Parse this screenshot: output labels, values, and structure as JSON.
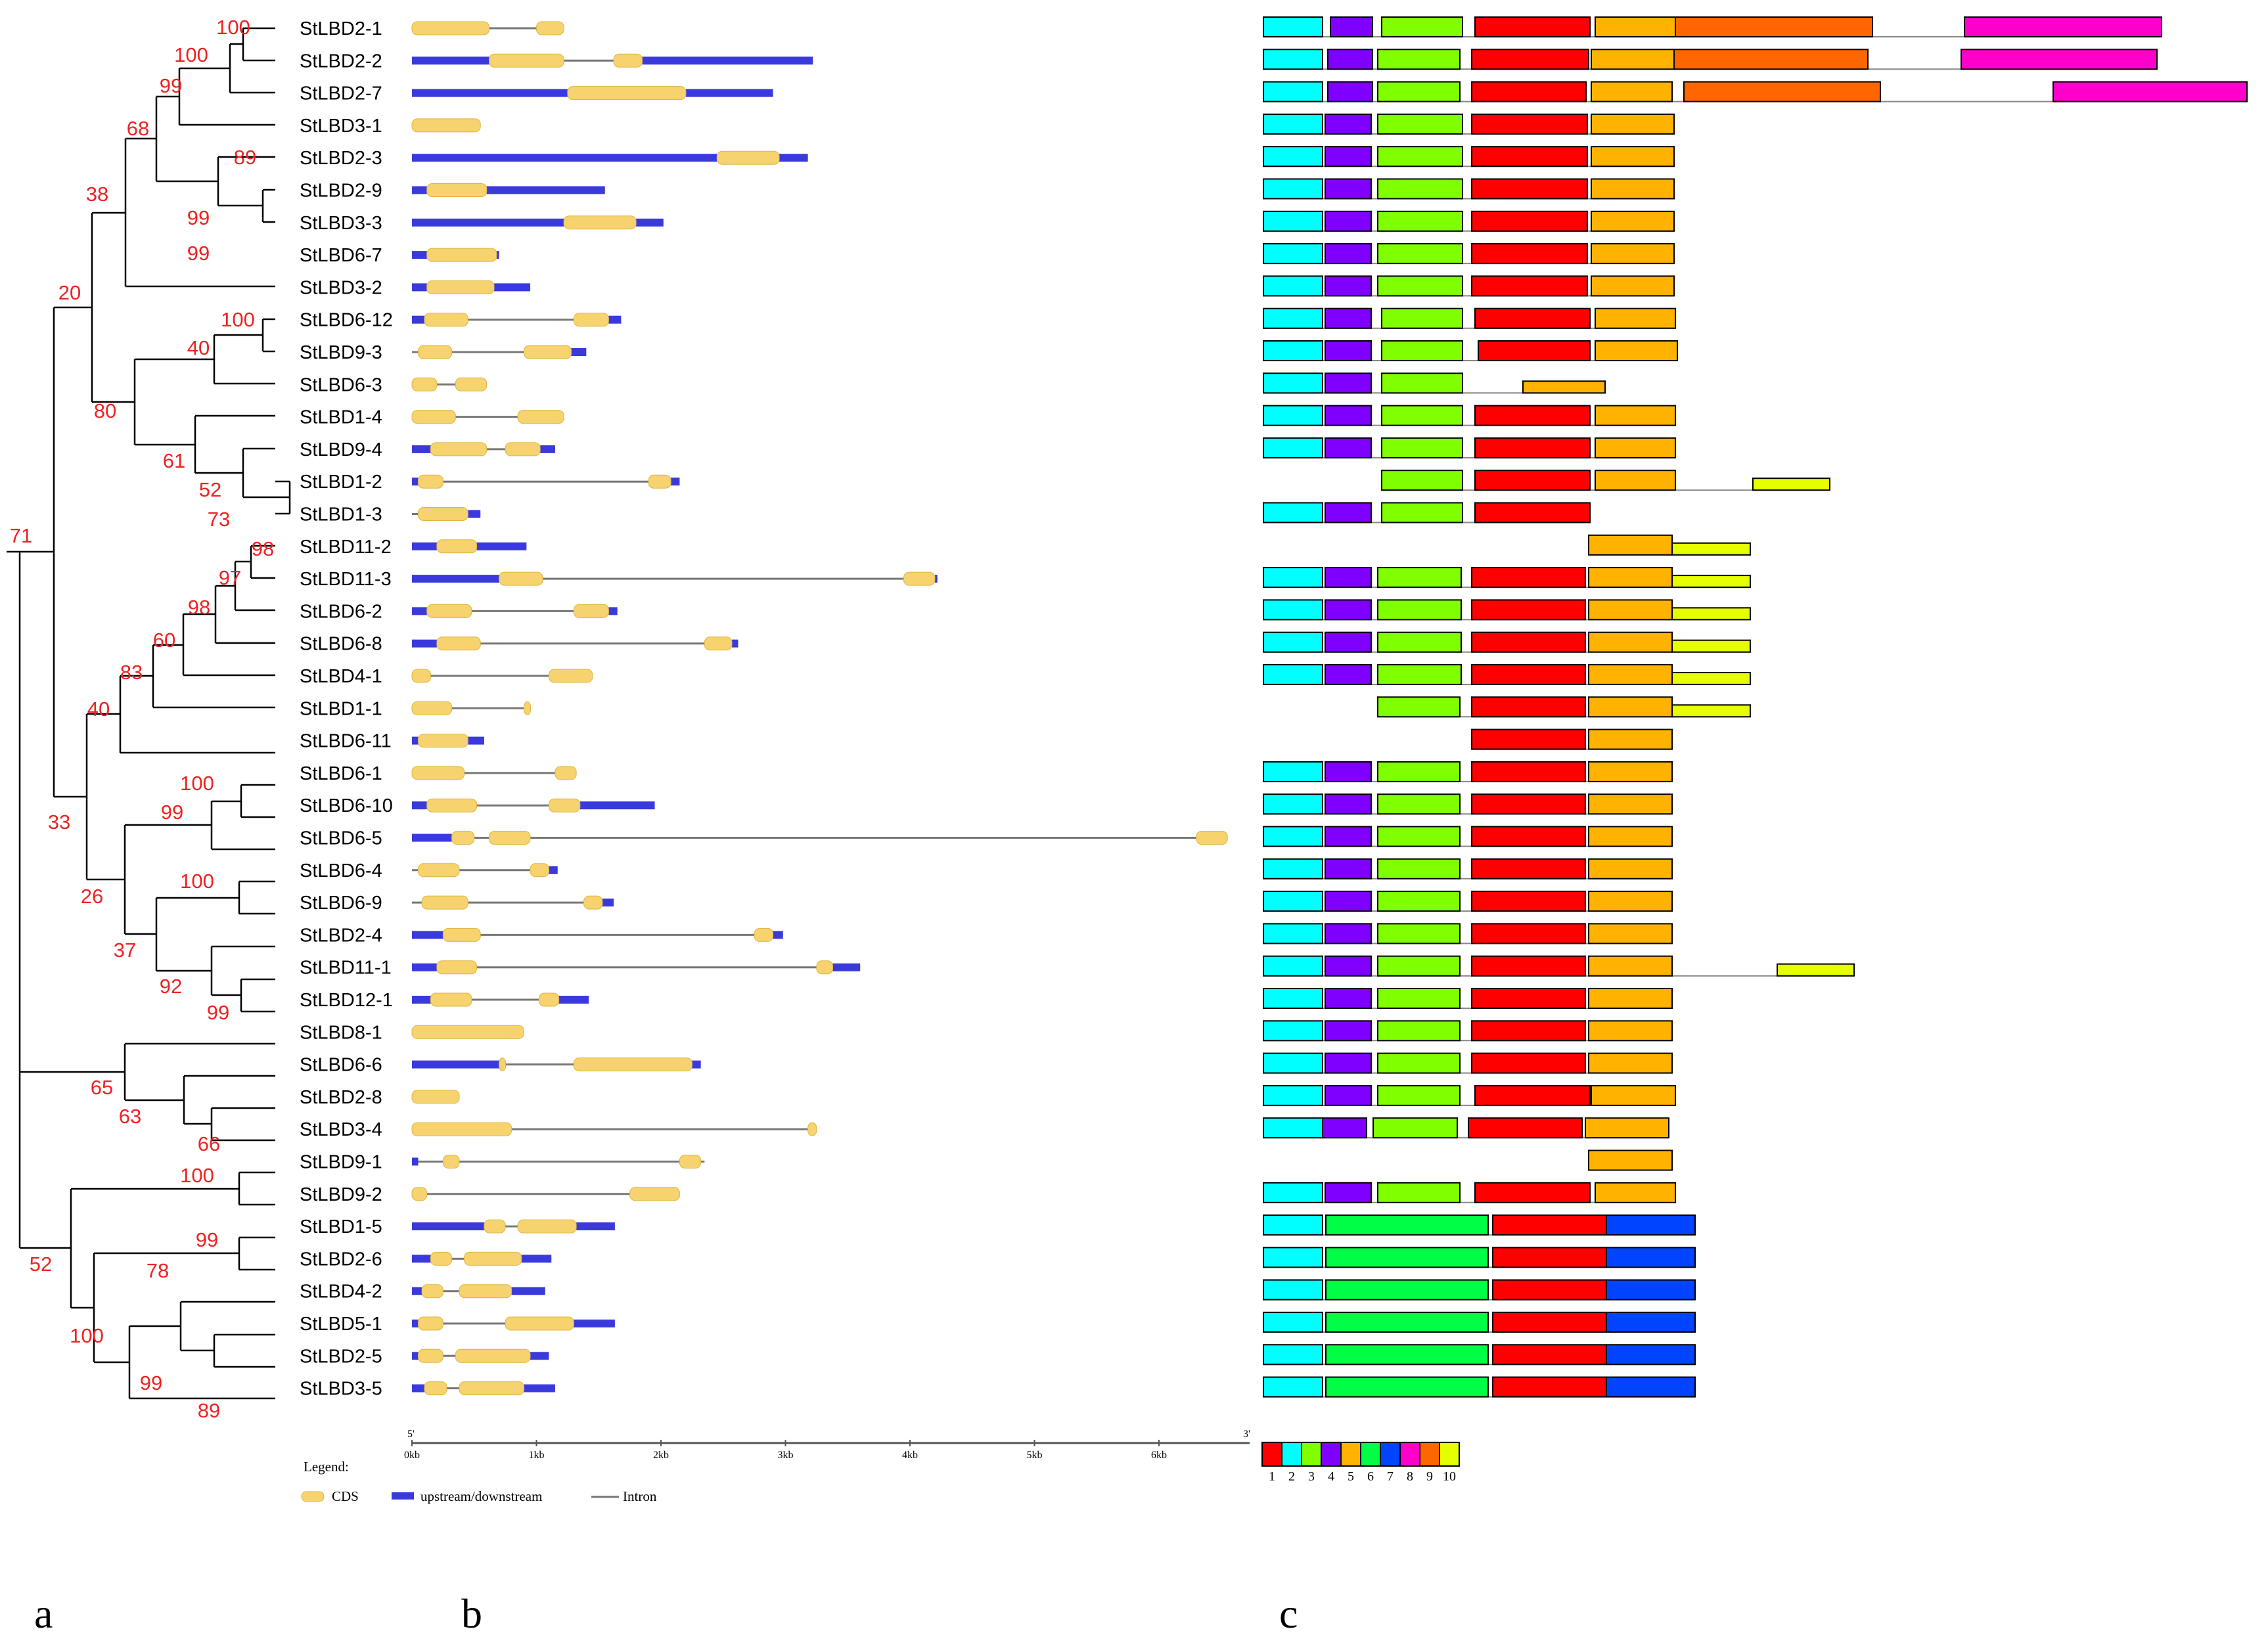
{
  "genes": [
    "StLBD2-1",
    "StLBD2-2",
    "StLBD2-7",
    "StLBD3-1",
    "StLBD2-3",
    "StLBD2-9",
    "StLBD3-3",
    "StLBD6-7",
    "StLBD3-2",
    "StLBD6-12",
    "StLBD9-3",
    "StLBD6-3",
    "StLBD1-4",
    "StLBD9-4",
    "StLBD1-2",
    "StLBD1-3",
    "StLBD11-2",
    "StLBD11-3",
    "StLBD6-2",
    "StLBD6-8",
    "StLBD4-1",
    "StLBD1-1",
    "StLBD6-11",
    "StLBD6-1",
    "StLBD6-10",
    "StLBD6-5",
    "StLBD6-4",
    "StLBD6-9",
    "StLBD2-4",
    "StLBD11-1",
    "StLBD12-1",
    "StLBD8-1",
    "StLBD6-6",
    "StLBD2-8",
    "StLBD3-4",
    "StLBD9-1",
    "StLBD9-2",
    "StLBD1-5",
    "StLBD2-6",
    "StLBD4-2",
    "StLBD5-1",
    "StLBD2-5",
    "StLBD3-5"
  ],
  "bootstrap": [
    "100",
    "100",
    "99",
    "68",
    "89",
    "99",
    "99",
    "38",
    "20",
    "100",
    "40",
    "80",
    "61",
    "52",
    "73",
    "71",
    "98",
    "97",
    "98",
    "60",
    "83",
    "40",
    "100",
    "99",
    "33",
    "26",
    "100",
    "37",
    "92",
    "99",
    "65",
    "63",
    "66",
    "100",
    "52",
    "99",
    "78",
    "100",
    "99",
    "89"
  ],
  "gene_structure_axis": {
    "start": "5'",
    "end": "3'",
    "ticks": [
      "0kb",
      "1kb",
      "2kb",
      "3kb",
      "4kb",
      "5kb",
      "6kb"
    ]
  },
  "legend": {
    "title": "Legend:",
    "items": [
      "CDS",
      "upstream/downstream",
      "Intron"
    ]
  },
  "motif_legend": [
    "1",
    "2",
    "3",
    "4",
    "5",
    "6",
    "7",
    "8",
    "9",
    "10"
  ],
  "motif_colors": {
    "1": "#ff0000",
    "2": "#00ffff",
    "3": "#7fff00",
    "4": "#8000ff",
    "5": "#ffb300",
    "6": "#00ff44",
    "7": "#0044ff",
    "8": "#ff00cc",
    "9": "#ff6600",
    "10": "#e6ff00"
  },
  "panels": [
    "a",
    "b",
    "c"
  ]
}
